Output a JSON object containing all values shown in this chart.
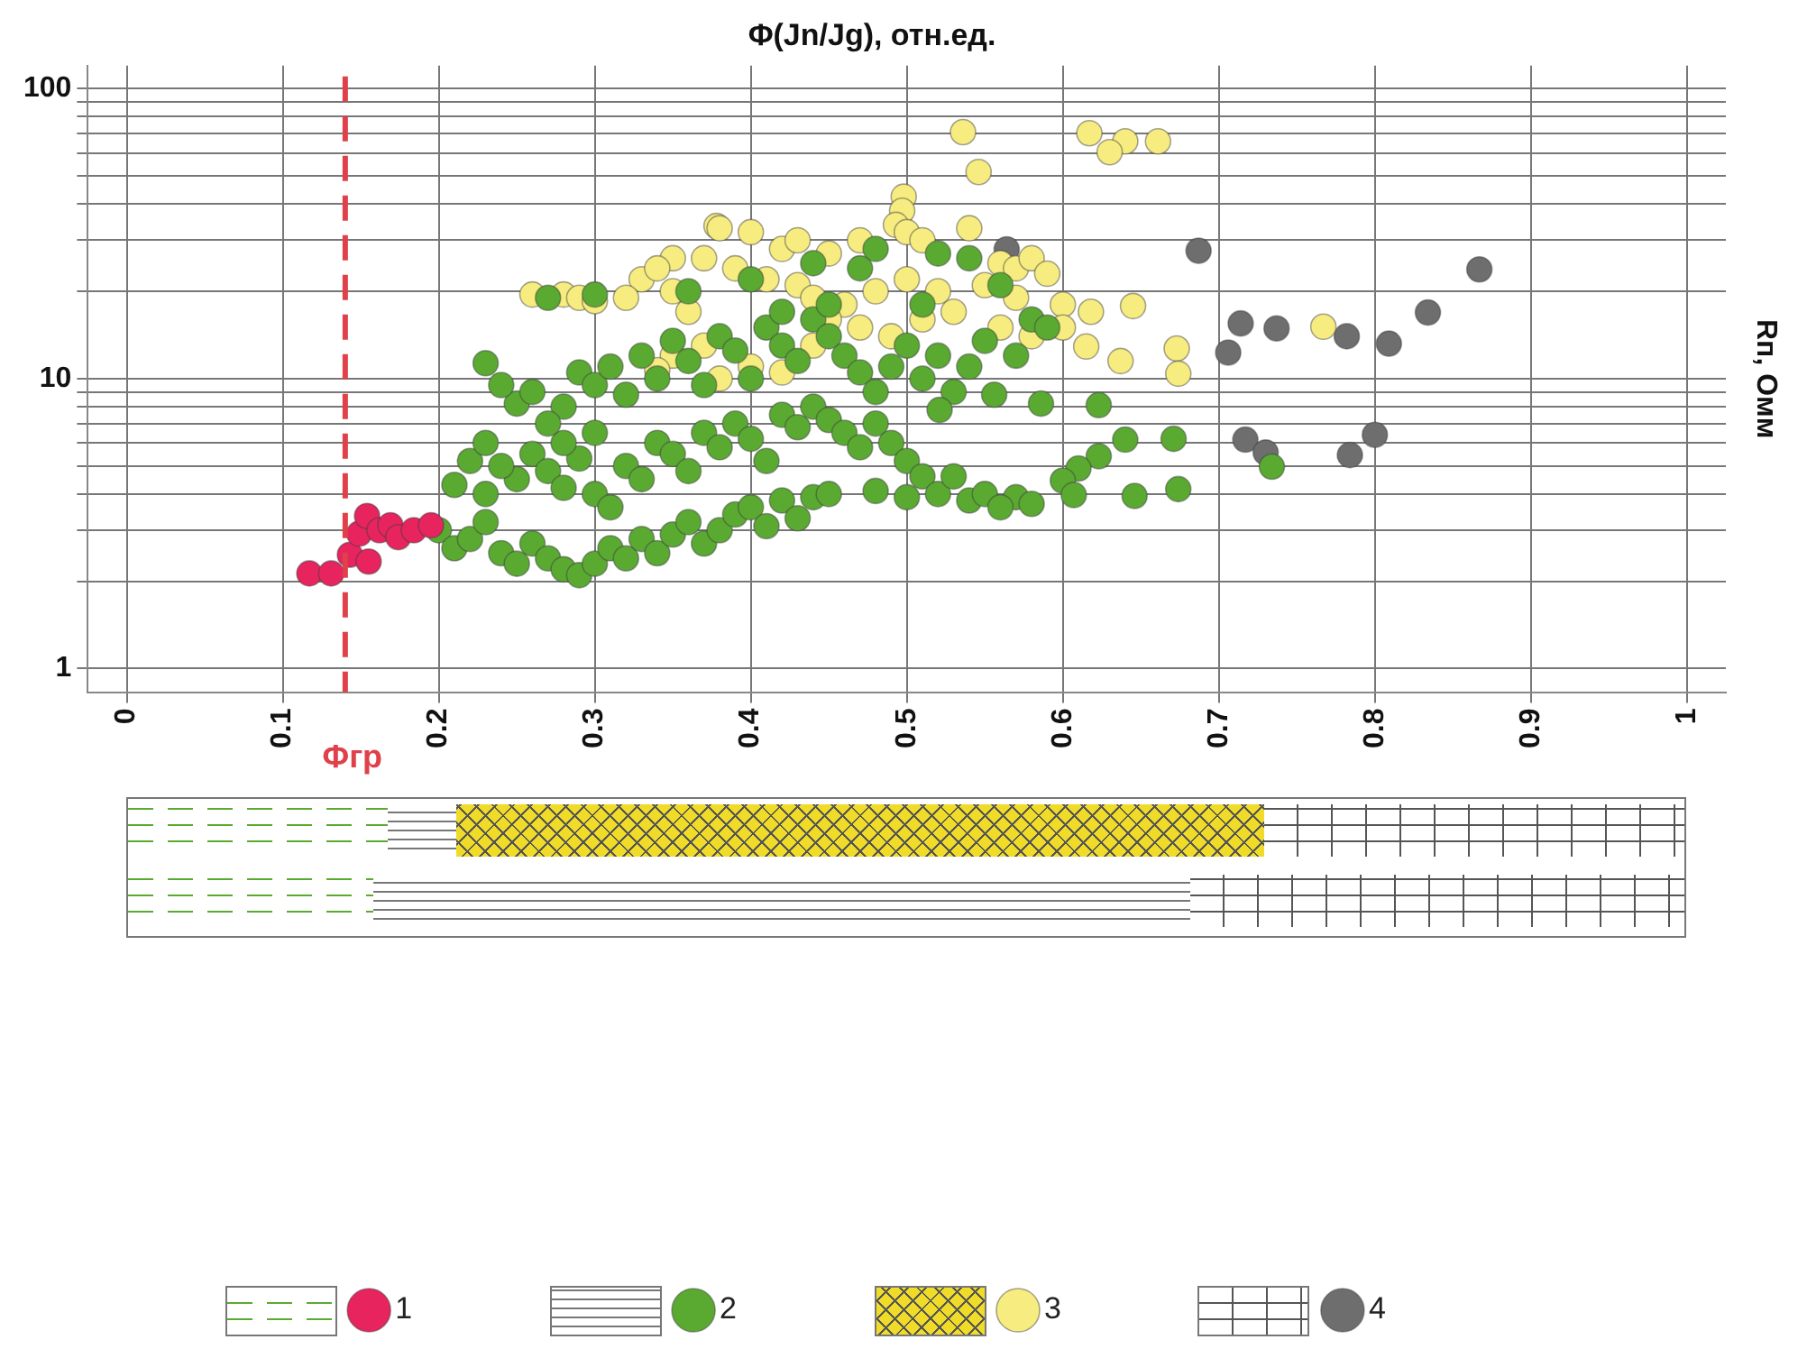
{
  "chart_data": {
    "type": "scatter",
    "xlabel": "Φ(Jn/Jg), отн.ед.",
    "ylabel": "Rп, Омм",
    "xlim": [
      -0.025,
      1.025
    ],
    "xticks": [
      0,
      0.1,
      0.2,
      0.3,
      0.4,
      0.5,
      0.6,
      0.7,
      0.8,
      0.9,
      1
    ],
    "ylim": [
      0.83,
      120
    ],
    "yticks": [
      1,
      {
        "value": 2,
        "label": null
      },
      {
        "value": 3,
        "label": null
      },
      {
        "value": 4,
        "label": null
      },
      {
        "value": 5,
        "label": null
      },
      {
        "value": 6,
        "label": null
      },
      {
        "value": 7,
        "label": null
      },
      {
        "value": 8,
        "label": null
      },
      {
        "value": 9,
        "label": null
      },
      10,
      {
        "value": 20,
        "label": null
      },
      {
        "value": 30,
        "label": null
      },
      {
        "value": 40,
        "label": null
      },
      {
        "value": 50,
        "label": null
      },
      {
        "value": 60,
        "label": null
      },
      {
        "value": 70,
        "label": null
      },
      {
        "value": 80,
        "label": null
      },
      {
        "value": 90,
        "label": null
      },
      100
    ],
    "log": "y",
    "grid": true,
    "legend": "bottom",
    "marker": "circle",
    "ref_lines": [
      {
        "axis": "x",
        "value": 0.14,
        "label": "Φгр",
        "color": "#e0404a",
        "line_style": "dashed"
      }
    ],
    "series": [
      {
        "name": "1",
        "color": "#e8245f",
        "x": [
          0.117,
          0.131,
          0.143,
          0.155,
          0.149,
          0.154,
          0.162,
          0.169,
          0.174,
          0.184,
          0.195
        ],
        "values": [
          2.13,
          2.13,
          2.47,
          2.34,
          2.92,
          3.36,
          3.0,
          3.12,
          2.84,
          3.0,
          3.12
        ]
      },
      {
        "name": "2",
        "color": "#5aaa32",
        "x": [
          0.2,
          0.21,
          0.22,
          0.23,
          0.24,
          0.25,
          0.26,
          0.27,
          0.28,
          0.29,
          0.3,
          0.31,
          0.32,
          0.33,
          0.34,
          0.35,
          0.36,
          0.37,
          0.38,
          0.39,
          0.4,
          0.41,
          0.42,
          0.43,
          0.44,
          0.23,
          0.25,
          0.24,
          0.22,
          0.21,
          0.26,
          0.27,
          0.28,
          0.29,
          0.3,
          0.31,
          0.32,
          0.33,
          0.34,
          0.35,
          0.36,
          0.37,
          0.38,
          0.39,
          0.4,
          0.41,
          0.42,
          0.43,
          0.44,
          0.45,
          0.46,
          0.47,
          0.48,
          0.49,
          0.5,
          0.51,
          0.25,
          0.26,
          0.28,
          0.29,
          0.3,
          0.31,
          0.32,
          0.33,
          0.34,
          0.35,
          0.36,
          0.37,
          0.38,
          0.39,
          0.4,
          0.41,
          0.42,
          0.43,
          0.44,
          0.45,
          0.46,
          0.47,
          0.48,
          0.49,
          0.5,
          0.51,
          0.52,
          0.53,
          0.54,
          0.55,
          0.57,
          0.27,
          0.3,
          0.36,
          0.4,
          0.44,
          0.48,
          0.47,
          0.52,
          0.54,
          0.56,
          0.51,
          0.58,
          0.59,
          0.45,
          0.42,
          0.3,
          0.28,
          0.23,
          0.27,
          0.23,
          0.24,
          0.45,
          0.48,
          0.5,
          0.52,
          0.54,
          0.55,
          0.57,
          0.58,
          0.53,
          0.56,
          0.64,
          0.671,
          0.623,
          0.61,
          0.6,
          0.607,
          0.646,
          0.674,
          0.734,
          0.623,
          0.586,
          0.556,
          0.521
        ],
        "values": [
          3.0,
          2.6,
          2.8,
          3.2,
          2.5,
          2.3,
          2.7,
          2.4,
          2.2,
          2.1,
          2.3,
          2.6,
          2.4,
          2.8,
          2.5,
          2.9,
          3.2,
          2.7,
          3.0,
          3.4,
          3.6,
          3.1,
          3.8,
          3.3,
          3.9,
          4.0,
          4.5,
          5.0,
          5.2,
          4.3,
          5.5,
          4.8,
          4.2,
          5.3,
          4.0,
          3.6,
          5.0,
          4.5,
          6.0,
          5.5,
          4.8,
          6.5,
          5.8,
          7.0,
          6.2,
          5.2,
          7.5,
          6.8,
          8.0,
          7.2,
          6.5,
          5.8,
          7.0,
          6.0,
          5.2,
          4.6,
          8.2,
          9.0,
          8.0,
          10.5,
          9.5,
          11.0,
          8.8,
          12.0,
          10.0,
          13.5,
          11.5,
          9.5,
          14.0,
          12.5,
          10.0,
          15.0,
          13.0,
          11.5,
          16.0,
          14.0,
          12.0,
          10.5,
          9.0,
          11.0,
          13.0,
          10.0,
          12.0,
          9.0,
          11.0,
          13.5,
          12.0,
          19.0,
          19.5,
          20,
          22,
          25,
          28,
          24,
          27,
          26,
          21,
          18,
          16,
          15,
          18,
          17,
          6.5,
          6.0,
          6.0,
          7.0,
          11.3,
          9.5,
          4.0,
          4.1,
          3.9,
          4.0,
          3.8,
          4.0,
          3.9,
          3.7,
          4.6,
          3.6,
          6.16,
          6.2,
          5.4,
          4.9,
          4.45,
          3.97,
          3.94,
          4.16,
          4.97,
          8.1,
          8.2,
          8.8,
          7.8
        ]
      },
      {
        "name": "3",
        "color": "#f7ec80",
        "x": [
          0.536,
          0.546,
          0.617,
          0.64,
          0.63,
          0.661,
          0.498,
          0.497,
          0.493,
          0.378,
          0.26,
          0.28,
          0.29,
          0.33,
          0.35,
          0.34,
          0.38,
          0.4,
          0.37,
          0.39,
          0.42,
          0.43,
          0.45,
          0.47,
          0.5,
          0.51,
          0.54,
          0.56,
          0.57,
          0.58,
          0.59,
          0.41,
          0.43,
          0.44,
          0.46,
          0.48,
          0.5,
          0.52,
          0.55,
          0.57,
          0.6,
          0.45,
          0.47,
          0.49,
          0.51,
          0.53,
          0.56,
          0.58,
          0.6,
          0.618,
          0.645,
          0.767,
          0.615,
          0.637,
          0.673,
          0.674,
          0.37,
          0.35,
          0.4,
          0.42,
          0.38,
          0.34,
          0.44,
          0.36,
          0.32,
          0.3,
          0.35
        ],
        "values": [
          70.8,
          51.6,
          70.2,
          65.8,
          60.4,
          65.8,
          42.4,
          37.9,
          33.9,
          33.6,
          19.5,
          19.5,
          19,
          22,
          26,
          24,
          33,
          32,
          26,
          24,
          28,
          30,
          27,
          30,
          32,
          30,
          33,
          25,
          24,
          26,
          23,
          22,
          21,
          19,
          18,
          20,
          22,
          20,
          21,
          19,
          18,
          16,
          15,
          14,
          16,
          17,
          15,
          14,
          15,
          17.0,
          17.8,
          15.1,
          12.9,
          11.5,
          12.7,
          10.4,
          13,
          12,
          11,
          10.5,
          10,
          10.7,
          13,
          17,
          19,
          18.5,
          20
        ]
      },
      {
        "name": "4",
        "color": "#6e6e6e",
        "x": [
          0.564,
          0.687,
          0.867,
          0.834,
          0.714,
          0.737,
          0.782,
          0.809,
          0.706,
          0.717,
          0.73,
          0.784,
          0.8
        ],
        "values": [
          27.9,
          27.6,
          23.8,
          16.9,
          15.5,
          14.9,
          14.0,
          13.2,
          12.3,
          6.16,
          5.56,
          5.45,
          6.4
        ]
      }
    ]
  }
}
